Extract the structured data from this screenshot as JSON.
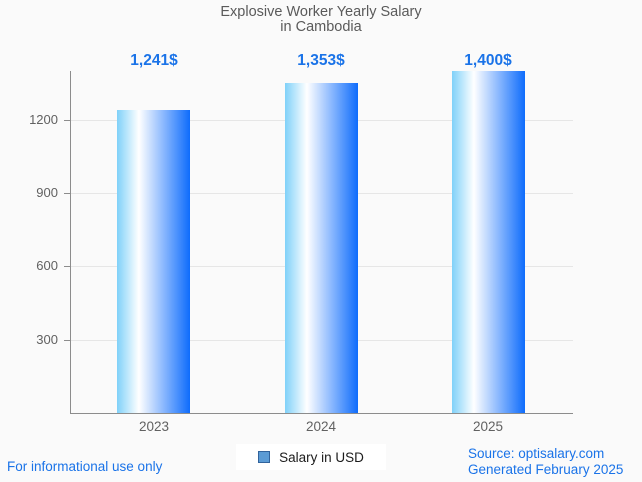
{
  "title": {
    "line1": "Explosive Worker Yearly Salary",
    "line2": "in Cambodia"
  },
  "chart_data": {
    "type": "bar",
    "title": "Explosive Worker Yearly Salary in Cambodia",
    "categories": [
      "2023",
      "2024",
      "2025"
    ],
    "values": [
      1241,
      1353,
      1400
    ],
    "value_labels": [
      "1,241$",
      "1,353$",
      "1,400$"
    ],
    "series_name": "Salary in USD",
    "xlabel": "",
    "ylabel": "",
    "ylim": [
      0,
      1400
    ],
    "yticks": [
      300,
      600,
      900,
      1200
    ],
    "grid": true,
    "legend_position": "bottom"
  },
  "legend": {
    "label": "Salary in USD"
  },
  "footer": {
    "left": "For informational use only",
    "source": "Source: optisalary.com",
    "generated": "Generated February 2025"
  },
  "colors": {
    "accent_blue": "#1a73e8",
    "title_text": "#5a5a5a",
    "axis_text": "#616161",
    "axis_line": "#8c8c8c",
    "gridline": "#e6e6e6",
    "background": "#fafafa",
    "legend_background": "#ffffff",
    "bar_gradient_left": "#7fd1f9",
    "bar_gradient_mid": "#ffffff",
    "bar_gradient_right": "#0e6cfc",
    "legend_swatch_fill": "#5b9bd5",
    "legend_swatch_border": "#31639c"
  }
}
